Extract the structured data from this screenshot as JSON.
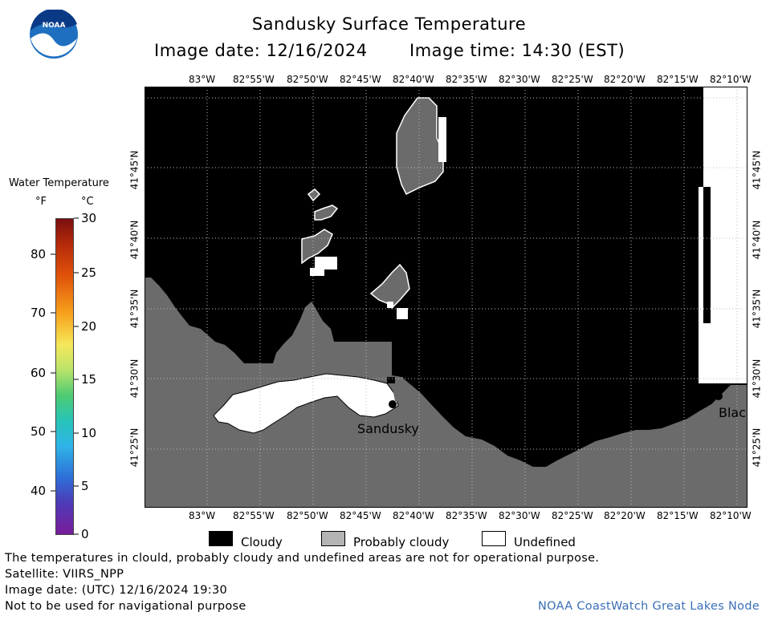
{
  "header": {
    "title": "Sandusky Surface Temperature",
    "image_date": "Image date: 12/16/2024",
    "image_time": "Image time: 14:30 (EST)"
  },
  "logo": {
    "text": "NOAA"
  },
  "colorbar": {
    "title": "Water Temperature",
    "unit_f": "°F",
    "unit_c": "°C",
    "f_labels": [
      "80",
      "70",
      "60",
      "50",
      "40"
    ],
    "c_labels": [
      "30",
      "25",
      "20",
      "15",
      "10",
      "5",
      "0"
    ]
  },
  "map": {
    "lon_labels": [
      "83°W",
      "82°55'W",
      "82°50'W",
      "82°45'W",
      "82°40'W",
      "82°35'W",
      "82°30'W",
      "82°25'W",
      "82°20'W",
      "82°15'W",
      "82°10'W"
    ],
    "lat_labels": [
      "41°45'N",
      "41°40'N",
      "41°35'N",
      "41°30'N",
      "41°25'N"
    ],
    "places": [
      "Sandusky",
      "Blac"
    ]
  },
  "legend": {
    "items": [
      {
        "label": "Cloudy",
        "color": "#000000"
      },
      {
        "label": "Probably cloudy",
        "color": "#b4b4b4"
      },
      {
        "label": "Undefined",
        "color": "#ffffff"
      }
    ]
  },
  "footer": {
    "disclaimer": "The temperatures in clould, probably cloudy and undefined areas are not for operational purpose.",
    "satellite": "Satellite: VIIRS_NPP",
    "utc_date": "Image date: (UTC) 12/16/2024  19:30",
    "nav_warning": "Not to be used for navigational purpose",
    "credit": "NOAA CoastWatch Great Lakes Node"
  },
  "colors": {
    "land": "#6b6b6b",
    "cloud": "#000000",
    "credit": "#3b6fb6"
  }
}
